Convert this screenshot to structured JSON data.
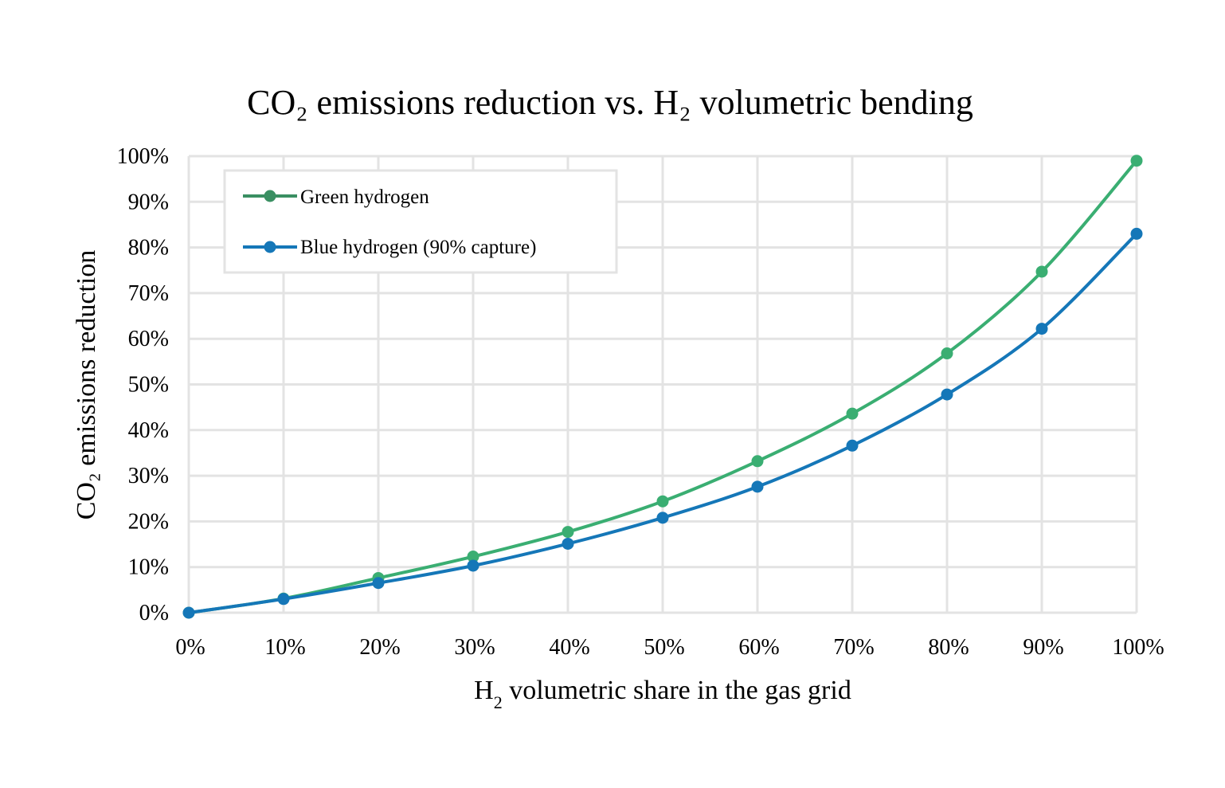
{
  "chart_data": {
    "type": "line",
    "title": "CO₂ emissions reduction vs. H₂ volumetric bending",
    "xlabel": "H",
    "xlabel_sub": "2",
    "xlabel_rest": " volumetric share in the gas grid",
    "ylabel": "CO₂ emissions reduction",
    "x": [
      0,
      10,
      20,
      30,
      40,
      50,
      60,
      70,
      80,
      90,
      100
    ],
    "x_tick_labels": [
      "0%",
      "10%",
      "20%",
      "30%",
      "40%",
      "50%",
      "60%",
      "70%",
      "80%",
      "90%",
      "100%"
    ],
    "y_ticks": [
      0,
      10,
      20,
      30,
      40,
      50,
      60,
      70,
      80,
      90,
      100
    ],
    "y_tick_labels": [
      "0%",
      "10%",
      "20%",
      "30%",
      "40%",
      "50%",
      "60%",
      "70%",
      "80%",
      "90%",
      "100%"
    ],
    "xlim": [
      0,
      100
    ],
    "ylim": [
      0,
      100
    ],
    "grid": true,
    "legend_position": "top-left",
    "series": [
      {
        "name": "Green hydrogen",
        "color": "#3aae72",
        "legend_color": "#3a8f62",
        "values": [
          0,
          3.1,
          7.6,
          12.3,
          17.7,
          24.4,
          33.2,
          43.6,
          56.8,
          74.7,
          99.0
        ]
      },
      {
        "name": "Blue hydrogen (90% capture)",
        "color": "#1577b8",
        "legend_color": "#1577b8",
        "values": [
          0,
          3.0,
          6.5,
          10.3,
          15.1,
          20.8,
          27.6,
          36.6,
          47.8,
          62.2,
          83.0
        ]
      }
    ]
  }
}
